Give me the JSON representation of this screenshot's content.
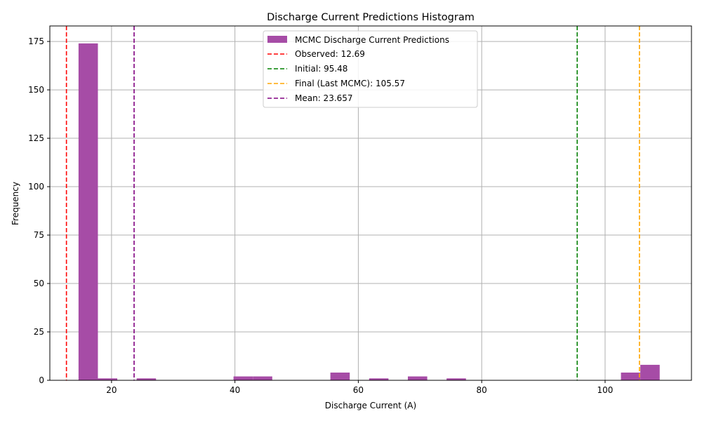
{
  "chart_data": {
    "type": "bar",
    "title": "Discharge Current Predictions Histogram",
    "xlabel": "Discharge Current (A)",
    "ylabel": "Frequency",
    "xlim": [
      10,
      114
    ],
    "ylim": [
      0,
      183
    ],
    "xticks": [
      20,
      40,
      60,
      80,
      100
    ],
    "yticks": [
      0,
      25,
      50,
      75,
      100,
      125,
      150,
      175
    ],
    "grid": true,
    "legend_position": "top-center",
    "bar_color": "#a64ca6",
    "bins": [
      {
        "start": 14.65,
        "end": 17.79,
        "count": 174
      },
      {
        "start": 17.79,
        "end": 20.93,
        "count": 1
      },
      {
        "start": 20.93,
        "end": 24.07,
        "count": 0
      },
      {
        "start": 24.07,
        "end": 27.21,
        "count": 1
      },
      {
        "start": 27.21,
        "end": 30.35,
        "count": 0
      },
      {
        "start": 30.35,
        "end": 33.49,
        "count": 0
      },
      {
        "start": 33.49,
        "end": 36.63,
        "count": 0
      },
      {
        "start": 36.63,
        "end": 39.77,
        "count": 0
      },
      {
        "start": 39.77,
        "end": 42.91,
        "count": 2
      },
      {
        "start": 42.91,
        "end": 46.05,
        "count": 2
      },
      {
        "start": 46.05,
        "end": 49.19,
        "count": 0
      },
      {
        "start": 49.19,
        "end": 52.33,
        "count": 0
      },
      {
        "start": 52.33,
        "end": 55.47,
        "count": 0
      },
      {
        "start": 55.47,
        "end": 58.61,
        "count": 4
      },
      {
        "start": 58.61,
        "end": 61.75,
        "count": 0
      },
      {
        "start": 61.75,
        "end": 64.89,
        "count": 1
      },
      {
        "start": 64.89,
        "end": 68.03,
        "count": 0
      },
      {
        "start": 68.03,
        "end": 71.17,
        "count": 2
      },
      {
        "start": 71.17,
        "end": 74.31,
        "count": 0
      },
      {
        "start": 74.31,
        "end": 77.45,
        "count": 1
      },
      {
        "start": 77.45,
        "end": 80.59,
        "count": 0
      },
      {
        "start": 80.59,
        "end": 83.73,
        "count": 0
      },
      {
        "start": 83.73,
        "end": 86.87,
        "count": 0
      },
      {
        "start": 86.87,
        "end": 90.01,
        "count": 0
      },
      {
        "start": 90.01,
        "end": 93.15,
        "count": 0
      },
      {
        "start": 93.15,
        "end": 96.29,
        "count": 0
      },
      {
        "start": 96.29,
        "end": 99.43,
        "count": 0
      },
      {
        "start": 99.43,
        "end": 102.57,
        "count": 0
      },
      {
        "start": 102.57,
        "end": 105.71,
        "count": 4
      },
      {
        "start": 105.71,
        "end": 108.85,
        "count": 8
      }
    ],
    "legend_bar_label": "MCMC Discharge Current Predictions",
    "vlines": [
      {
        "label": "Observed: 12.69",
        "x": 12.69,
        "color": "#ff0000"
      },
      {
        "label": "Initial: 95.48",
        "x": 95.48,
        "color": "#008000"
      },
      {
        "label": "Final (Last MCMC): 105.57",
        "x": 105.57,
        "color": "#ffa500"
      },
      {
        "label": "Mean: 23.657",
        "x": 23.657,
        "color": "#800080"
      }
    ]
  }
}
